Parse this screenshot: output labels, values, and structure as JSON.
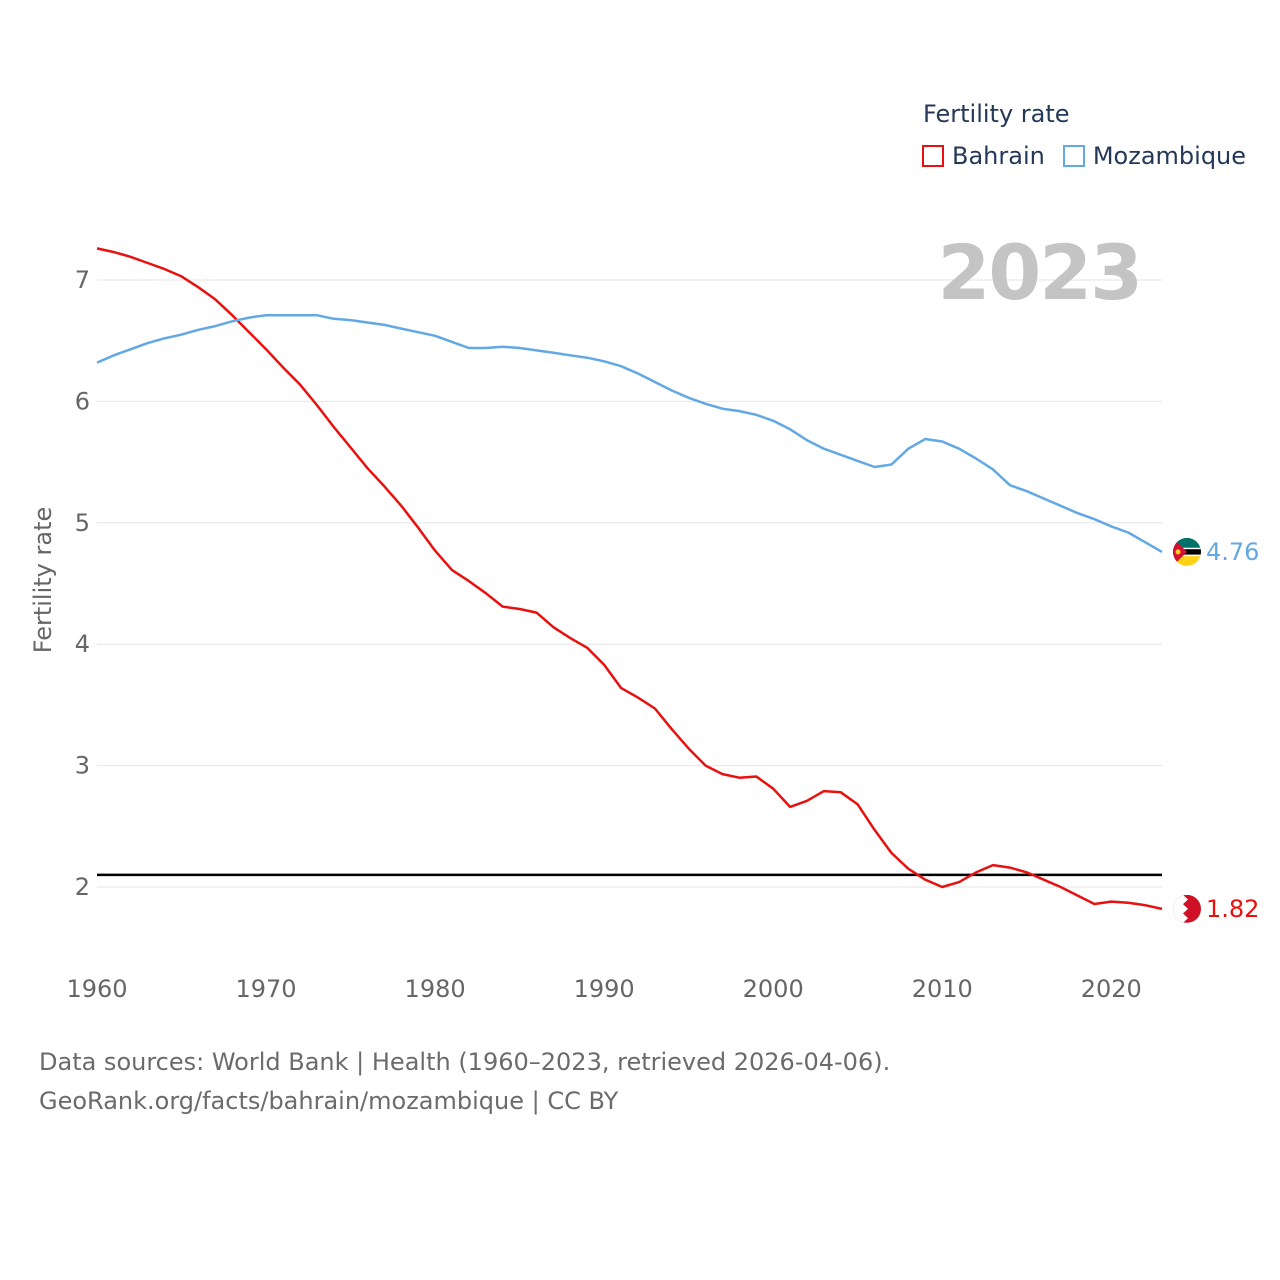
{
  "legend": {
    "title": "Fertility rate"
  },
  "current_year": "2023",
  "sources": {
    "line1": "Data sources: World Bank | Health (1960–2023, retrieved 2026-04-06).",
    "line2": "GeoRank.org/facts/bahrain/mozambique | CC BY"
  },
  "chart_data": {
    "type": "line",
    "title": "Fertility rate",
    "xlabel": "",
    "ylabel": "Fertility rate",
    "xlim": [
      1960,
      2023
    ],
    "ylim": [
      1.5,
      7.6
    ],
    "x_ticks": [
      "1960",
      "1970",
      "1980",
      "1990",
      "2000",
      "2010",
      "2020"
    ],
    "y_ticks": [
      "2",
      "3",
      "4",
      "5",
      "6",
      "7"
    ],
    "grid": true,
    "legend_position": "top-right",
    "reference_line": {
      "value": 2.1,
      "color": "#000000"
    },
    "series": [
      {
        "name": "Bahrain",
        "color": "#e8110f",
        "icon": "bahrain-flag-icon",
        "end_label": "1.82",
        "x": [
          1960,
          1961,
          1962,
          1963,
          1964,
          1965,
          1966,
          1967,
          1968,
          1969,
          1970,
          1971,
          1972,
          1973,
          1974,
          1975,
          1976,
          1977,
          1978,
          1979,
          1980,
          1981,
          1982,
          1983,
          1984,
          1985,
          1986,
          1987,
          1988,
          1989,
          1990,
          1991,
          1992,
          1993,
          1994,
          1995,
          1996,
          1997,
          1998,
          1999,
          2000,
          2001,
          2002,
          2003,
          2004,
          2005,
          2006,
          2007,
          2008,
          2009,
          2010,
          2011,
          2012,
          2013,
          2014,
          2015,
          2016,
          2017,
          2018,
          2019,
          2020,
          2021,
          2022,
          2023
        ],
        "values": [
          7.26,
          7.23,
          7.19,
          7.14,
          7.09,
          7.03,
          6.94,
          6.84,
          6.71,
          6.57,
          6.43,
          6.28,
          6.14,
          5.97,
          5.79,
          5.62,
          5.45,
          5.3,
          5.14,
          4.96,
          4.77,
          4.61,
          4.52,
          4.42,
          4.31,
          4.29,
          4.26,
          4.14,
          4.05,
          3.97,
          3.83,
          3.64,
          3.56,
          3.47,
          3.3,
          3.14,
          3.0,
          2.93,
          2.9,
          2.91,
          2.81,
          2.66,
          2.71,
          2.79,
          2.78,
          2.68,
          2.47,
          2.28,
          2.15,
          2.06,
          2.0,
          2.04,
          2.12,
          2.18,
          2.16,
          2.12,
          2.06,
          2.0,
          1.93,
          1.86,
          1.88,
          1.87,
          1.85,
          1.82
        ]
      },
      {
        "name": "Mozambique",
        "color": "#62a8e5",
        "icon": "mozambique-flag-icon",
        "end_label": "4.76",
        "x": [
          1960,
          1961,
          1962,
          1963,
          1964,
          1965,
          1966,
          1967,
          1968,
          1969,
          1970,
          1971,
          1972,
          1973,
          1974,
          1975,
          1976,
          1977,
          1978,
          1979,
          1980,
          1981,
          1982,
          1983,
          1984,
          1985,
          1986,
          1987,
          1988,
          1989,
          1990,
          1991,
          1992,
          1993,
          1994,
          1995,
          1996,
          1997,
          1998,
          1999,
          2000,
          2001,
          2002,
          2003,
          2004,
          2005,
          2006,
          2007,
          2008,
          2009,
          2010,
          2011,
          2012,
          2013,
          2014,
          2015,
          2016,
          2017,
          2018,
          2019,
          2020,
          2021,
          2022,
          2023
        ],
        "values": [
          6.32,
          6.38,
          6.43,
          6.48,
          6.52,
          6.55,
          6.59,
          6.62,
          6.66,
          6.69,
          6.71,
          6.71,
          6.71,
          6.71,
          6.68,
          6.67,
          6.65,
          6.63,
          6.6,
          6.57,
          6.54,
          6.49,
          6.44,
          6.44,
          6.45,
          6.44,
          6.42,
          6.4,
          6.38,
          6.36,
          6.33,
          6.29,
          6.23,
          6.16,
          6.09,
          6.03,
          5.98,
          5.94,
          5.92,
          5.89,
          5.84,
          5.77,
          5.68,
          5.61,
          5.56,
          5.51,
          5.46,
          5.48,
          5.61,
          5.69,
          5.67,
          5.61,
          5.53,
          5.44,
          5.31,
          5.26,
          5.2,
          5.14,
          5.08,
          5.03,
          4.97,
          4.92,
          4.84,
          4.76
        ]
      }
    ]
  }
}
